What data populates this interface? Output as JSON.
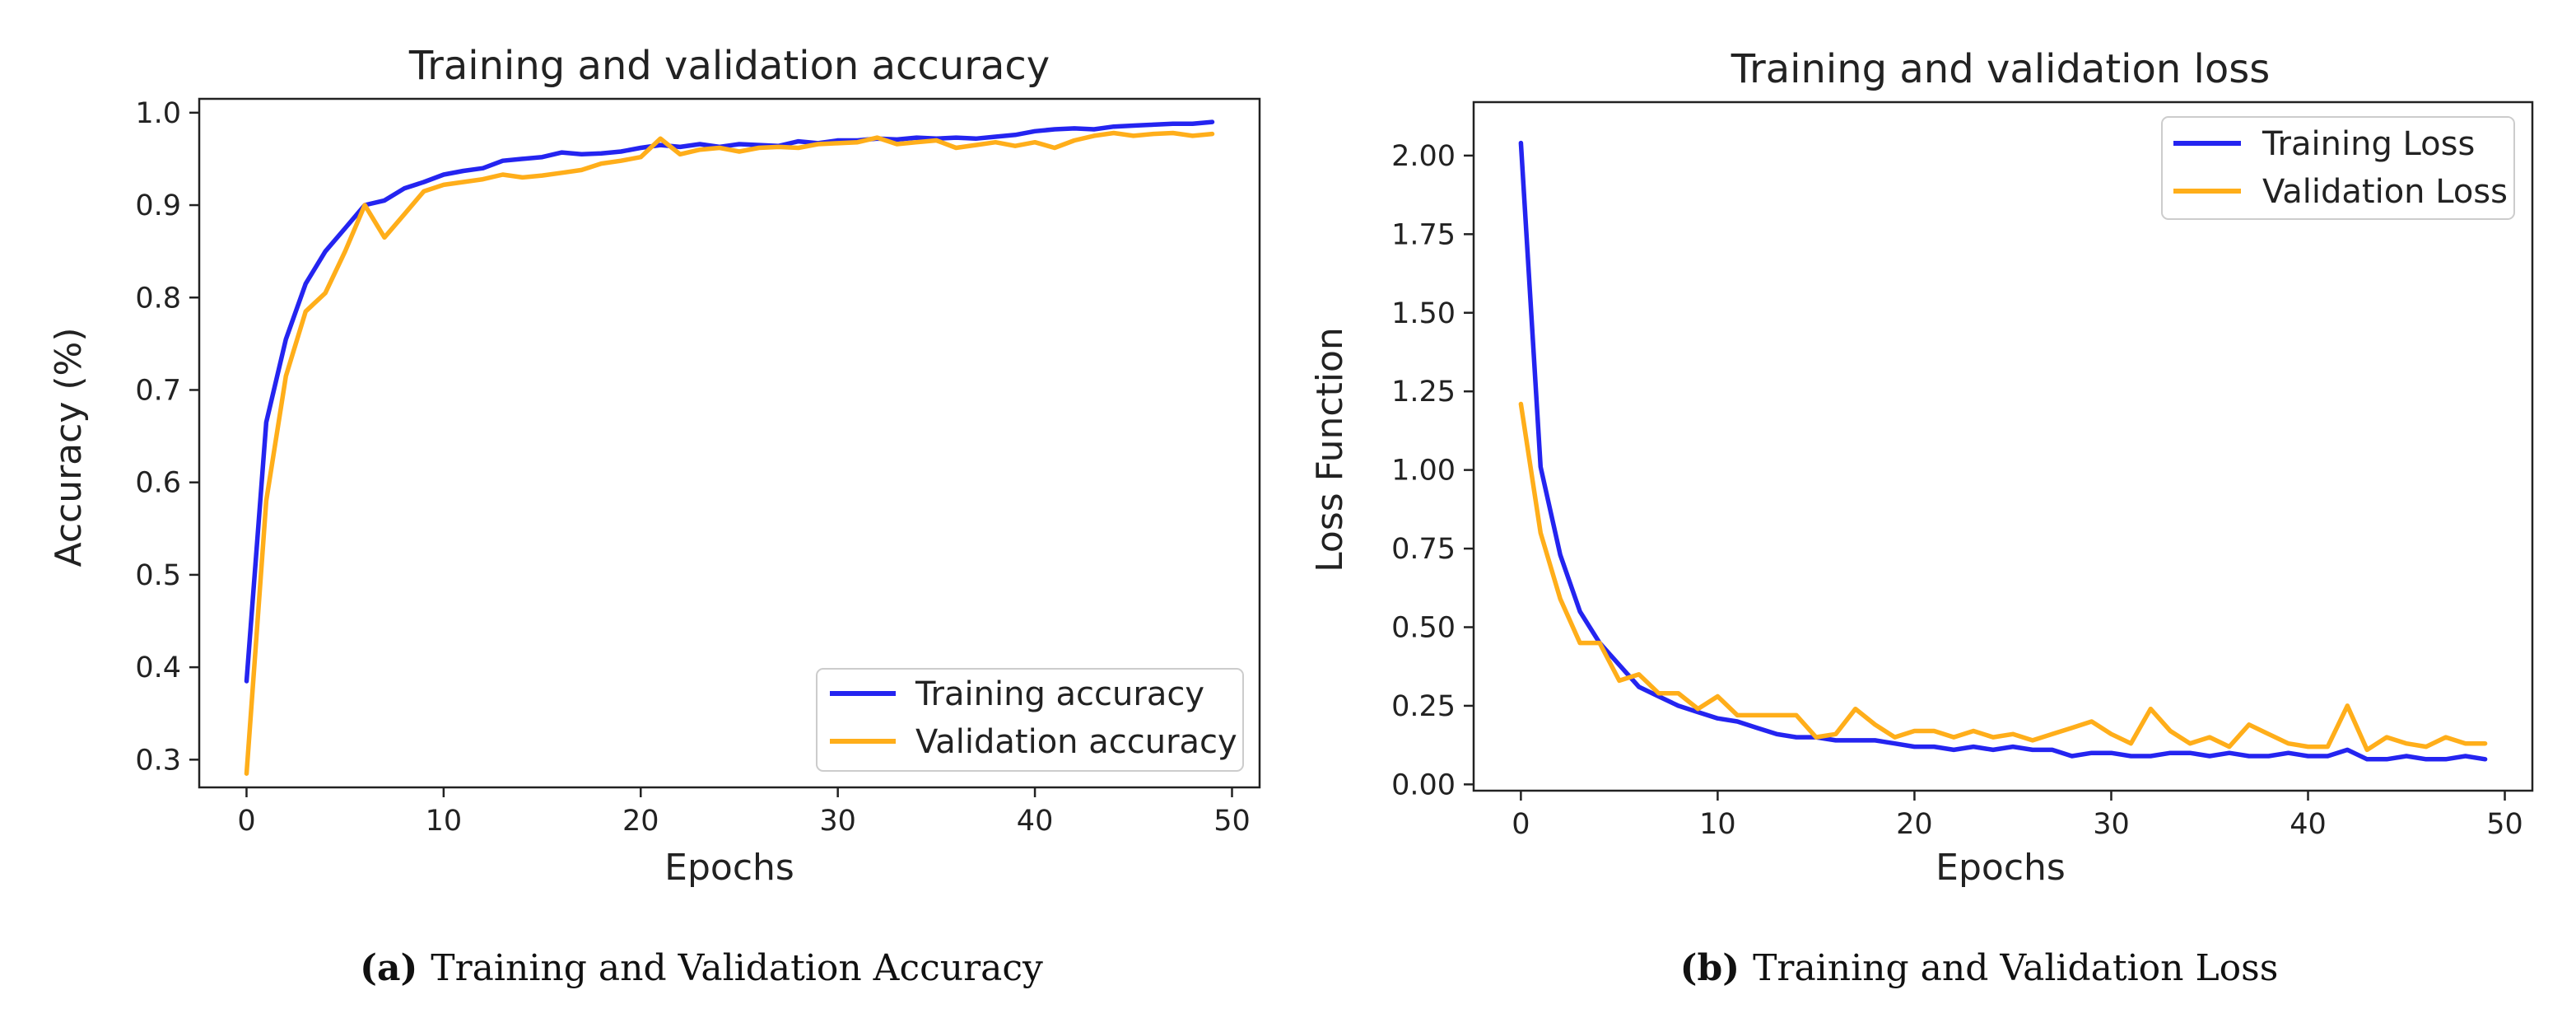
{
  "colors": {
    "training": "#2424f0",
    "validation": "#ffae1a",
    "axes": "#222222",
    "legend_border": "#cccccc"
  },
  "captions": [
    {
      "letter": "(a)",
      "text": "Training and Validation Accuracy"
    },
    {
      "letter": "(b)",
      "text": "Training and Validation Loss"
    }
  ],
  "chart_data": [
    {
      "type": "line",
      "title": "Training and validation accuracy",
      "xlabel": "Epochs",
      "ylabel": "Accuracy (%)",
      "xlim": [
        -2.4,
        51.4
      ],
      "ylim": [
        0.27,
        1.015
      ],
      "xticks": [
        0,
        10,
        20,
        30,
        40,
        50
      ],
      "xtick_labels": [
        "0",
        "10",
        "20",
        "30",
        "40",
        "50"
      ],
      "yticks": [
        0.3,
        0.4,
        0.5,
        0.6,
        0.7,
        0.8,
        0.9,
        1.0
      ],
      "ytick_labels": [
        "0.3",
        "0.4",
        "0.5",
        "0.6",
        "0.7",
        "0.8",
        "0.9",
        "1.0"
      ],
      "legend_position": "lower-right",
      "x": [
        0,
        1,
        2,
        3,
        4,
        5,
        6,
        7,
        8,
        9,
        10,
        11,
        12,
        13,
        14,
        15,
        16,
        17,
        18,
        19,
        20,
        21,
        22,
        23,
        24,
        25,
        26,
        27,
        28,
        29,
        30,
        31,
        32,
        33,
        34,
        35,
        36,
        37,
        38,
        39,
        40,
        41,
        42,
        43,
        44,
        45,
        46,
        47,
        48,
        49
      ],
      "series": [
        {
          "name": "Training accuracy",
          "color_key": "training",
          "values": [
            0.385,
            0.665,
            0.755,
            0.815,
            0.85,
            0.875,
            0.9,
            0.905,
            0.918,
            0.925,
            0.933,
            0.937,
            0.94,
            0.948,
            0.95,
            0.952,
            0.957,
            0.955,
            0.956,
            0.958,
            0.962,
            0.965,
            0.963,
            0.966,
            0.963,
            0.966,
            0.965,
            0.964,
            0.969,
            0.967,
            0.97,
            0.97,
            0.972,
            0.971,
            0.973,
            0.972,
            0.973,
            0.972,
            0.974,
            0.976,
            0.98,
            0.982,
            0.983,
            0.982,
            0.985,
            0.986,
            0.987,
            0.988,
            0.988,
            0.99
          ]
        },
        {
          "name": "Validation accuracy",
          "color_key": "validation",
          "values": [
            0.285,
            0.58,
            0.715,
            0.785,
            0.805,
            0.85,
            0.9,
            0.865,
            0.89,
            0.915,
            0.922,
            0.925,
            0.928,
            0.933,
            0.93,
            0.932,
            0.935,
            0.938,
            0.945,
            0.948,
            0.952,
            0.972,
            0.955,
            0.96,
            0.962,
            0.958,
            0.962,
            0.963,
            0.962,
            0.966,
            0.967,
            0.968,
            0.973,
            0.966,
            0.968,
            0.97,
            0.962,
            0.965,
            0.968,
            0.964,
            0.968,
            0.962,
            0.97,
            0.975,
            0.978,
            0.975,
            0.977,
            0.978,
            0.975,
            0.977
          ]
        }
      ]
    },
    {
      "type": "line",
      "title": "Training and validation loss",
      "xlabel": "Epochs",
      "ylabel": "Loss Function",
      "xlim": [
        -2.4,
        51.4
      ],
      "ylim": [
        -0.02,
        2.17
      ],
      "xticks": [
        0,
        10,
        20,
        30,
        40,
        50
      ],
      "xtick_labels": [
        "0",
        "10",
        "20",
        "30",
        "40",
        "50"
      ],
      "yticks": [
        0.0,
        0.25,
        0.5,
        0.75,
        1.0,
        1.25,
        1.5,
        1.75,
        2.0
      ],
      "ytick_labels": [
        "0.00",
        "0.25",
        "0.50",
        "0.75",
        "1.00",
        "1.25",
        "1.50",
        "1.75",
        "2.00"
      ],
      "legend_position": "top-right",
      "x": [
        0,
        1,
        2,
        3,
        4,
        5,
        6,
        7,
        8,
        9,
        10,
        11,
        12,
        13,
        14,
        15,
        16,
        17,
        18,
        19,
        20,
        21,
        22,
        23,
        24,
        25,
        26,
        27,
        28,
        29,
        30,
        31,
        32,
        33,
        34,
        35,
        36,
        37,
        38,
        39,
        40,
        41,
        42,
        43,
        44,
        45,
        46,
        47,
        48,
        49
      ],
      "series": [
        {
          "name": "Training Loss",
          "color_key": "training",
          "values": [
            2.04,
            1.01,
            0.73,
            0.55,
            0.45,
            0.38,
            0.31,
            0.28,
            0.25,
            0.23,
            0.21,
            0.2,
            0.18,
            0.16,
            0.15,
            0.15,
            0.14,
            0.14,
            0.14,
            0.13,
            0.12,
            0.12,
            0.11,
            0.12,
            0.11,
            0.12,
            0.11,
            0.11,
            0.09,
            0.1,
            0.1,
            0.09,
            0.09,
            0.1,
            0.1,
            0.09,
            0.1,
            0.09,
            0.09,
            0.1,
            0.09,
            0.09,
            0.11,
            0.08,
            0.08,
            0.09,
            0.08,
            0.08,
            0.09,
            0.08
          ]
        },
        {
          "name": "Validation Loss",
          "color_key": "validation",
          "values": [
            1.21,
            0.8,
            0.59,
            0.45,
            0.45,
            0.33,
            0.35,
            0.29,
            0.29,
            0.24,
            0.28,
            0.22,
            0.22,
            0.22,
            0.22,
            0.15,
            0.16,
            0.24,
            0.19,
            0.15,
            0.17,
            0.17,
            0.15,
            0.17,
            0.15,
            0.16,
            0.14,
            0.16,
            0.18,
            0.2,
            0.16,
            0.13,
            0.24,
            0.17,
            0.13,
            0.15,
            0.12,
            0.19,
            0.16,
            0.13,
            0.12,
            0.12,
            0.25,
            0.11,
            0.15,
            0.13,
            0.12,
            0.15,
            0.13,
            0.13
          ]
        }
      ]
    }
  ]
}
